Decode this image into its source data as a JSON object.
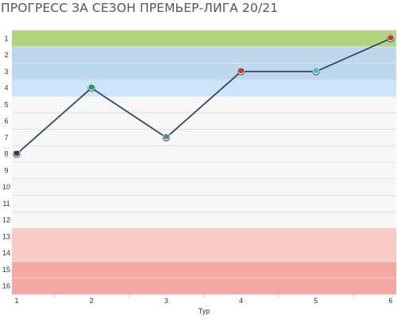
{
  "title": "ПРОГРЕСС ЗА СЕЗОН ПРЕМЬЕР-ЛИГА 20/21",
  "chart_data": {
    "type": "line",
    "title": "ПРОГРЕСС ЗА СЕЗОН ПРЕМЬЕР-ЛИГА 20/21",
    "xlabel": "Тур",
    "ylabel": "",
    "x": [
      1,
      2,
      3,
      4,
      5,
      6
    ],
    "xticks": [
      "1",
      "2",
      "3",
      "4",
      "5",
      "6"
    ],
    "yticks": [
      "1",
      "2",
      "3",
      "4",
      "5",
      "6",
      "7",
      "8",
      "9",
      "10",
      "11",
      "12",
      "13",
      "14",
      "15",
      "16"
    ],
    "ylim": [
      16,
      1
    ],
    "y_reversed": true,
    "grid": true,
    "series": [
      {
        "values": [
          8,
          4,
          7,
          3,
          3,
          1
        ],
        "color": "#34495e"
      }
    ],
    "markers": [
      {
        "x": 1,
        "icon": "club-crest-icon",
        "color": "#2c3e50"
      },
      {
        "x": 2,
        "icon": "club-crest-icon",
        "color": "#1e9e5a"
      },
      {
        "x": 3,
        "icon": "club-crest-icon",
        "color": "#5a8a8a"
      },
      {
        "x": 4,
        "icon": "club-crest-icon",
        "color": "#c0392b"
      },
      {
        "x": 5,
        "icon": "club-crest-icon",
        "color": "#5dade2"
      },
      {
        "x": 6,
        "icon": "club-crest-icon",
        "color": "#c0392b"
      }
    ],
    "position_zones": [
      {
        "from": 1,
        "to": 1,
        "color": "#b3d47f"
      },
      {
        "from": 2,
        "to": 3,
        "color": "#bdd7ee"
      },
      {
        "from": 4,
        "to": 4,
        "color": "#cce5fb"
      },
      {
        "from": 5,
        "to": 12,
        "color": "#f7f7f7"
      },
      {
        "from": 13,
        "to": 14,
        "color": "#f8cac6"
      },
      {
        "from": 15,
        "to": 16,
        "color": "#f5a8a3"
      }
    ]
  }
}
